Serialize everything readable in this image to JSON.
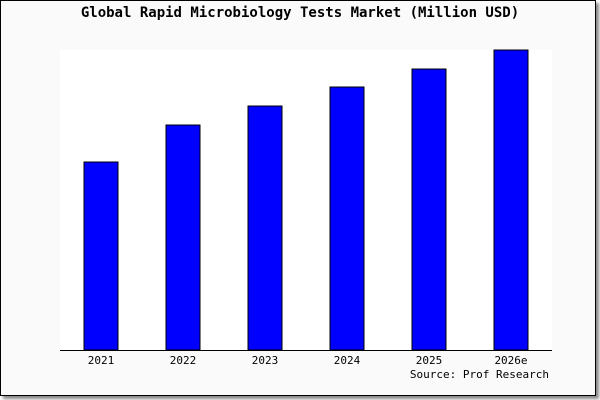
{
  "chart_data": {
    "type": "bar",
    "title": "Global Rapid Microbiology Tests Market (Million USD)",
    "categories": [
      "2021",
      "2022",
      "2023",
      "2024",
      "2025",
      "2026e"
    ],
    "values": [
      188,
      225,
      244,
      263,
      281,
      300
    ],
    "ylim": [
      0,
      300
    ],
    "xlabel": "",
    "ylabel": "",
    "grid": false,
    "bar_color": "#0000ff",
    "source": "Source: Prof Research"
  }
}
